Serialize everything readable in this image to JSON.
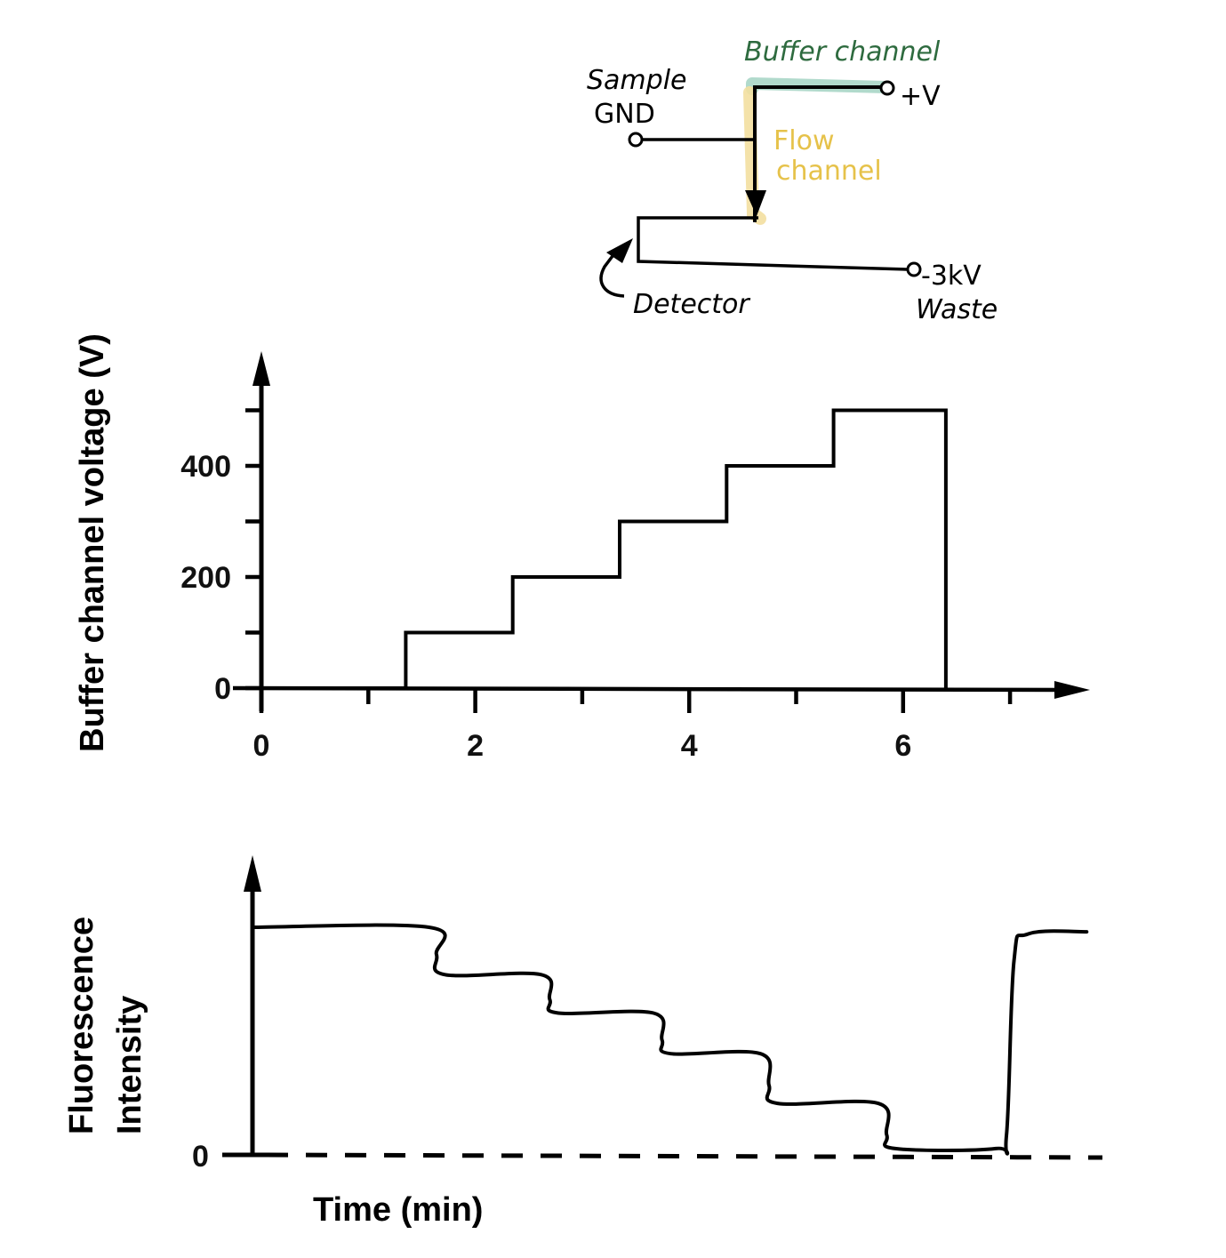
{
  "schematic": {
    "labels": {
      "buffer_channel": "Buffer channel",
      "plus_v": "+V",
      "sample": "Sample",
      "gnd": "GND",
      "flow_channel_line1": "Flow",
      "flow_channel_line2": "channel",
      "minus_3kv": "-3kV",
      "waste": "Waste",
      "detector": "Detector"
    },
    "colors": {
      "buffer_channel": "#2e6b3f",
      "buffer_highlight": "#a9d6c7",
      "flow_channel": "#e6c24a",
      "flow_highlight": "#f3dfa0"
    }
  },
  "chart_data": [
    {
      "type": "line",
      "style": "step",
      "title": "",
      "xlabel": "",
      "ylabel": "Buffer channel voltage (V)",
      "xlim": [
        0,
        7.8
      ],
      "ylim": [
        0,
        560
      ],
      "x_ticks": [
        0,
        1,
        2,
        3,
        4,
        5,
        6,
        7
      ],
      "x_tick_labels": [
        "0",
        "",
        "2",
        "",
        "4",
        "",
        "6",
        ""
      ],
      "y_ticks": [
        0,
        100,
        200,
        300,
        400,
        500
      ],
      "y_tick_labels": [
        "0",
        "",
        "200",
        "",
        "400",
        ""
      ],
      "grid": false,
      "series": [
        {
          "name": "Buffer channel voltage",
          "x": [
            0,
            1.35,
            1.35,
            2.35,
            2.35,
            3.35,
            3.35,
            4.35,
            4.35,
            5.35,
            5.35,
            6.4,
            6.4
          ],
          "y": [
            0,
            0,
            100,
            100,
            200,
            200,
            300,
            300,
            400,
            400,
            500,
            500,
            0
          ]
        }
      ]
    },
    {
      "type": "line",
      "title": "",
      "xlabel": "Time (min)",
      "ylabel": "Fluorescence Intensity",
      "ylabel_lines": [
        "Fluorescence",
        "Intensity"
      ],
      "xlim": [
        0,
        7.8
      ],
      "ylim": [
        0,
        1.2
      ],
      "y_ticks": [
        0
      ],
      "y_tick_labels": [
        "0"
      ],
      "baseline": "dashed zero line",
      "grid": false,
      "series": [
        {
          "name": "Fluorescence intensity",
          "x": [
            0,
            1.65,
            1.72,
            1.8,
            2.7,
            2.78,
            2.86,
            3.75,
            3.83,
            3.91,
            4.75,
            4.83,
            4.91,
            5.85,
            5.93,
            6.01,
            6.95,
            7.05,
            7.12,
            7.25,
            7.8
          ],
          "y": [
            1.0,
            1.0,
            0.88,
            0.79,
            0.79,
            0.68,
            0.62,
            0.62,
            0.5,
            0.44,
            0.44,
            0.3,
            0.22,
            0.22,
            0.08,
            0.02,
            0.02,
            0.08,
            0.85,
            0.97,
            0.98
          ]
        }
      ]
    }
  ]
}
